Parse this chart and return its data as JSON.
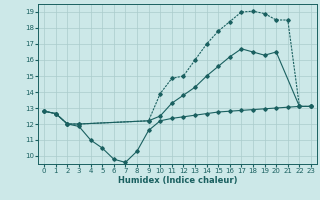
{
  "xlabel": "Humidex (Indice chaleur)",
  "bg_color": "#cce8e8",
  "grid_color": "#aacccc",
  "line_color": "#1a6060",
  "xlim": [
    -0.5,
    23.5
  ],
  "ylim": [
    9.5,
    19.5
  ],
  "yticks": [
    10,
    11,
    12,
    13,
    14,
    15,
    16,
    17,
    18,
    19
  ],
  "xticks": [
    0,
    1,
    2,
    3,
    4,
    5,
    6,
    7,
    8,
    9,
    10,
    11,
    12,
    13,
    14,
    15,
    16,
    17,
    18,
    19,
    20,
    21,
    22,
    23
  ],
  "line1_x": [
    0,
    1,
    2,
    3,
    4,
    5,
    6,
    7,
    8,
    9,
    10,
    11,
    12,
    13,
    14,
    15,
    16,
    17,
    18,
    19,
    20,
    21,
    22,
    23
  ],
  "line1_y": [
    12.8,
    12.65,
    12.0,
    11.85,
    11.0,
    10.5,
    9.8,
    9.6,
    10.3,
    11.6,
    12.2,
    12.35,
    12.45,
    12.55,
    12.65,
    12.75,
    12.8,
    12.85,
    12.9,
    12.95,
    13.0,
    13.05,
    13.1,
    13.1
  ],
  "line2_x": [
    0,
    1,
    2,
    3,
    9,
    10,
    11,
    12,
    13,
    14,
    15,
    16,
    17,
    18,
    19,
    20,
    21,
    22,
    23
  ],
  "line2_y": [
    12.8,
    12.65,
    12.0,
    12.0,
    12.2,
    13.9,
    14.85,
    15.0,
    16.0,
    17.0,
    17.8,
    18.4,
    19.0,
    19.05,
    18.9,
    18.5,
    18.5,
    13.1,
    13.1
  ],
  "line3_x": [
    0,
    1,
    2,
    3,
    9,
    10,
    11,
    12,
    13,
    14,
    15,
    16,
    17,
    18,
    19,
    20,
    22,
    23
  ],
  "line3_y": [
    12.8,
    12.65,
    12.0,
    12.0,
    12.2,
    12.5,
    13.3,
    13.8,
    14.3,
    15.0,
    15.6,
    16.2,
    16.7,
    16.5,
    16.3,
    16.5,
    13.1,
    13.1
  ]
}
